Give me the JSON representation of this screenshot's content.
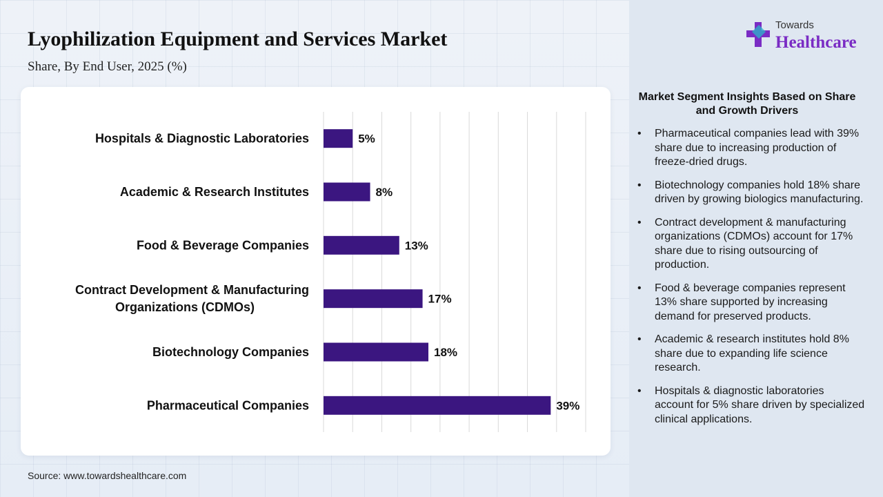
{
  "title": "Lyophilization Equipment and Services Market",
  "subtitle": "Share, By End User, 2025 (%)",
  "logo": {
    "small": "Towards",
    "big": "Healthcare"
  },
  "source": "Source: www.towardshealthcare.com",
  "colors": {
    "bar": "#3b1680",
    "accent": "#7a2cc4"
  },
  "chart_data": {
    "type": "bar",
    "orientation": "horizontal",
    "categories": [
      "Hospitals & Diagnostic Laboratories",
      "Academic & Research Institutes",
      "Food & Beverage Companies",
      "Contract Development & Manufacturing Organizations (CDMOs)",
      "Biotechnology Companies",
      "Pharmaceutical Companies"
    ],
    "category_lines": [
      [
        "Hospitals & Diagnostic Laboratories"
      ],
      [
        "Academic & Research Institutes"
      ],
      [
        "Food & Beverage Companies"
      ],
      [
        "Contract Development & Manufacturing",
        "Organizations (CDMOs)"
      ],
      [
        "Biotechnology Companies"
      ],
      [
        "Pharmaceutical Companies"
      ]
    ],
    "values": [
      5,
      8,
      13,
      17,
      18,
      39
    ],
    "value_labels": [
      "5%",
      "8%",
      "13%",
      "17%",
      "18%",
      "39%"
    ],
    "xlim": [
      0,
      45
    ],
    "grid": true,
    "legend": "none"
  },
  "insights": {
    "title": "Market Segment Insights Based on Share and Growth Drivers",
    "bullet": "•",
    "items": [
      "Pharmaceutical companies lead with 39% share due to increasing production of freeze-dried drugs.",
      "Biotechnology companies hold 18% share driven by growing biologics manufacturing.",
      "Contract development & manufacturing organizations (CDMOs) account for 17% share due to rising outsourcing of production.",
      "Food & beverage companies represent 13% share supported by increasing demand for preserved products.",
      "Academic & research institutes hold 8% share due to expanding life science research.",
      "Hospitals & diagnostic laboratories account for 5% share driven by specialized clinical applications."
    ]
  }
}
